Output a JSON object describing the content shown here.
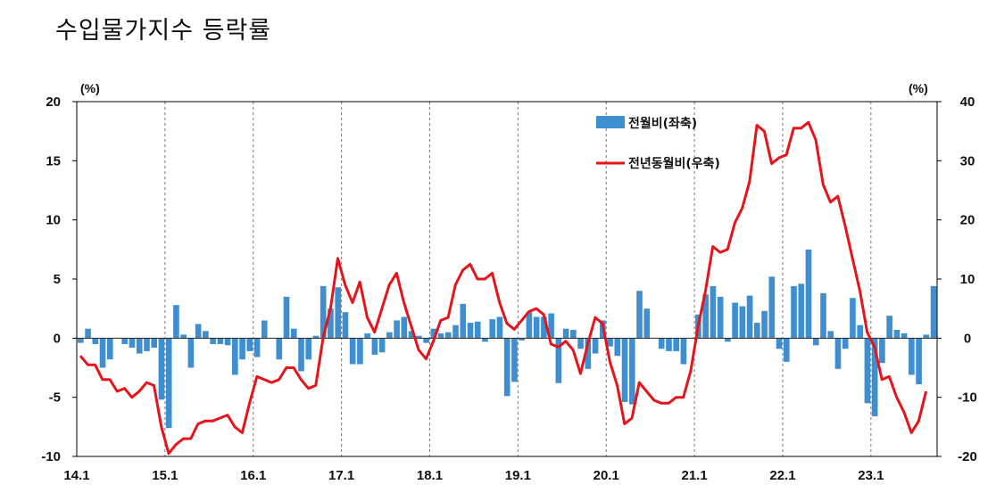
{
  "title": "수입물가지수 등락률",
  "chart_data": {
    "type": "bar+line",
    "left_unit": "(%)",
    "right_unit": "(%)",
    "left_axis": {
      "min": -10,
      "max": 20,
      "ticks": [
        20,
        15,
        10,
        5,
        0,
        -5,
        -10
      ]
    },
    "right_axis": {
      "min": -20,
      "max": 40,
      "ticks": [
        40,
        30,
        20,
        10,
        0,
        -10,
        -20
      ]
    },
    "x_tick_labels": [
      "14.1",
      "15.1",
      "16.1",
      "17.1",
      "18.1",
      "19.1",
      "20.1",
      "21.1",
      "22.1",
      "23.1"
    ],
    "series": [
      {
        "name": "전월비(좌축)",
        "axis": "left",
        "type": "bar",
        "color": "#3f8fd0",
        "values": [
          -0.4,
          0.8,
          -0.5,
          -2.5,
          -1.8,
          0,
          -0.5,
          -0.8,
          -1.3,
          -1.1,
          -0.8,
          -5.2,
          -7.6,
          2.8,
          0.3,
          -2.5,
          1.2,
          0.6,
          -0.5,
          -0.5,
          -0.6,
          -3.1,
          -1.8,
          -1.1,
          -1.6,
          1.5,
          0,
          -1.8,
          3.5,
          0.8,
          -2.8,
          -1.8,
          0.2,
          4.4,
          2.5,
          4.3,
          2.2,
          -2.2,
          -2.2,
          0.4,
          -1.4,
          -1.2,
          0.5,
          1.5,
          1.8,
          0.6,
          0.2,
          -0.4,
          0.8,
          0.4,
          0.5,
          1.1,
          2.9,
          1.3,
          1.4,
          -0.3,
          1.6,
          1.8,
          -4.9,
          -3.7,
          -0.2,
          2.2,
          1.8,
          1.8,
          2.1,
          -3.8,
          0.8,
          0.7,
          -0.9,
          -2.6,
          -1.3,
          1.5,
          -0.7,
          -1.5,
          -5.4,
          -5.6,
          4.0,
          2.5,
          0,
          -0.9,
          -1.1,
          -1.1,
          -2.2,
          0,
          2.0,
          3.7,
          4.4,
          3.5,
          -0.3,
          3.0,
          2.7,
          3.6,
          1.3,
          2.3,
          5.2,
          -0.9,
          -2.0,
          4.4,
          4.6,
          7.5,
          -0.6,
          3.8,
          0.6,
          -2.6,
          -0.9,
          3.4,
          1.1,
          -5.5,
          -6.6,
          -2.1,
          1.9,
          0.7,
          0.4,
          -3.1,
          -3.9,
          0.3,
          4.4
        ]
      },
      {
        "name": "전년동월비(우축)",
        "axis": "right",
        "type": "line",
        "color": "#e5141a",
        "values": [
          -3,
          -4.5,
          -4.5,
          -7,
          -7,
          -9,
          -8.5,
          -10,
          -9,
          -7.5,
          -8,
          -15,
          -19.5,
          -18,
          -17,
          -17,
          -14.5,
          -14,
          -14,
          -13.5,
          -13,
          -15,
          -16,
          -11,
          -6.5,
          -7,
          -7.5,
          -7,
          -5,
          -5,
          -7,
          -8.5,
          -8,
          0,
          5,
          13.5,
          9,
          6,
          9.5,
          3.5,
          1,
          5,
          9,
          11,
          6,
          2,
          -2,
          -3.5,
          -0.5,
          3,
          3.5,
          9,
          11.5,
          12.5,
          10,
          10,
          11,
          6,
          2.5,
          1.5,
          3,
          4.5,
          5,
          4,
          -1,
          -1.5,
          -0.5,
          -2,
          -6,
          -1,
          3.5,
          2.5,
          -4,
          -8,
          -14.5,
          -13.5,
          -7.5,
          -9,
          -10.5,
          -11,
          -11,
          -10,
          -10,
          -5.5,
          2,
          8,
          15.5,
          14.5,
          15,
          19.5,
          22,
          26.5,
          36,
          35,
          29.5,
          30.5,
          31,
          35.5,
          35.5,
          36.5,
          33.5,
          26,
          23,
          24,
          19,
          13.5,
          8,
          1,
          -1.5,
          -7,
          -6.5,
          -10,
          -12.5,
          -16,
          -14,
          -9
        ]
      }
    ]
  }
}
